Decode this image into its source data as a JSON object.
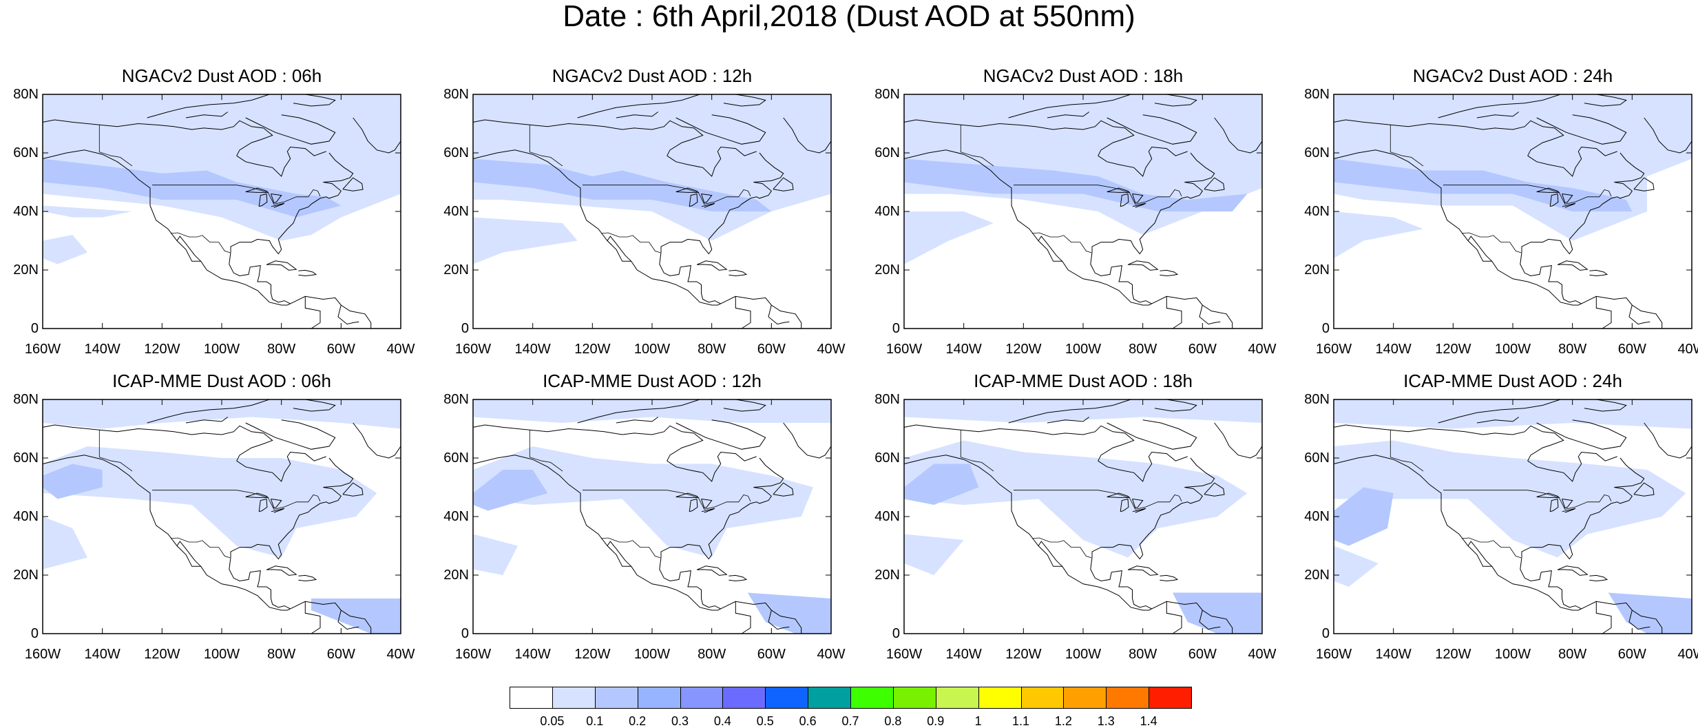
{
  "figure": {
    "title": "Date : 6th April,2018 (Dust AOD at 550nm)"
  },
  "panels": [
    {
      "title": "NGACv2 Dust AOD : 06h"
    },
    {
      "title": "NGACv2 Dust AOD : 12h"
    },
    {
      "title": "NGACv2 Dust AOD : 18h"
    },
    {
      "title": "NGACv2 Dust AOD : 24h"
    },
    {
      "title": "ICAP-MME Dust AOD : 06h"
    },
    {
      "title": "ICAP-MME Dust AOD : 12h"
    },
    {
      "title": "ICAP-MME Dust AOD : 18h"
    },
    {
      "title": "ICAP-MME Dust AOD : 24h"
    }
  ],
  "axes": {
    "lon_ticks": [
      "160W",
      "140W",
      "120W",
      "100W",
      "80W",
      "60W",
      "40W"
    ],
    "lon_values": [
      -160,
      -140,
      -120,
      -100,
      -80,
      -60,
      -40
    ],
    "lat_ticks": [
      "0",
      "20N",
      "40N",
      "60N",
      "80N"
    ],
    "lat_values": [
      0,
      20,
      40,
      60,
      80
    ],
    "lon_range": [
      -160,
      -40
    ],
    "lat_range": [
      0,
      80
    ]
  },
  "colorbar": {
    "labels": [
      "0.05",
      "0.1",
      "0.2",
      "0.3",
      "0.4",
      "0.5",
      "0.6",
      "0.7",
      "0.8",
      "0.9",
      "1",
      "1.1",
      "1.2",
      "1.3",
      "1.4"
    ],
    "colors": [
      "#ffffff",
      "#d6e2ff",
      "#b4c8ff",
      "#96b4ff",
      "#8796ff",
      "#6b6bff",
      "#0f64ff",
      "#00a0a0",
      "#3cff00",
      "#78f000",
      "#c8f550",
      "#ffff00",
      "#ffc800",
      "#ffa000",
      "#ff7800",
      "#ff1e00"
    ]
  }
}
